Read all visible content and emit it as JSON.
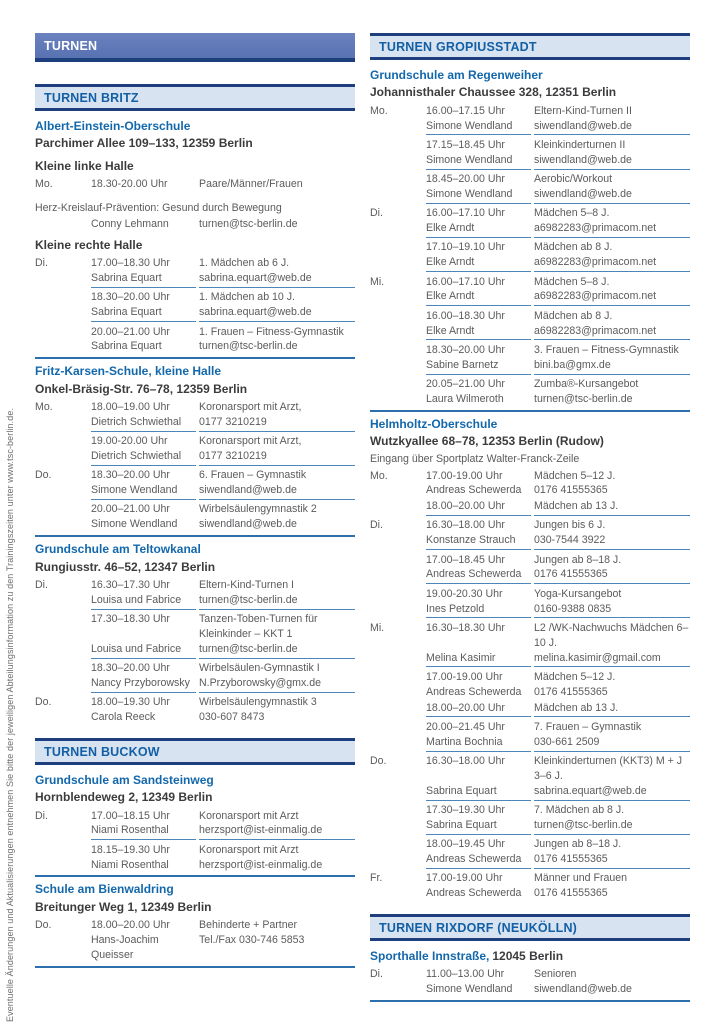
{
  "sidebar_note": "Eventuelle Änderungen und Aktualisierungen entnehmen Sie bitte der jeweiligen Abteilungsinformation zu den Trainingszeiten unter www.tsc-berlin.de.",
  "colors": {
    "main_bar_bg": "#5d77b7",
    "bar_border": "#1d3f7e",
    "section_bar_bg": "#d8e3f1",
    "section_text": "#135fa5",
    "venue_blue": "#1368ac",
    "body_gray": "#5b5b5e",
    "rule_blue": "#4d86bd",
    "separator_blue": "#2d6fad"
  },
  "columns": [
    {
      "blocks": [
        {
          "t": "main",
          "text": "TURNEN"
        },
        {
          "t": "sec",
          "text": "TURNEN BRITZ"
        },
        {
          "t": "venue",
          "text": "Albert-Einstein-Oberschule"
        },
        {
          "t": "addr",
          "text": "Parchimer Allee 109–133, 12359 Berlin"
        },
        {
          "t": "hall",
          "text": "Kleine linke Halle"
        },
        {
          "t": "entry",
          "day": "Mo.",
          "time": "18.30-20.00 Uhr",
          "prog": "Paare/Männer/Frauen",
          "name": "",
          "info": "",
          "rule": false
        },
        {
          "t": "note",
          "gap": true,
          "text": "Herz-Kreislauf-Prävention: Gesund durch Bewegung"
        },
        {
          "t": "entry",
          "day": "",
          "time": "",
          "prog": "",
          "name": "Conny Lehmann",
          "info": "turnen@tsc-berlin.de",
          "rule": false
        },
        {
          "t": "hall",
          "text": "Kleine rechte Halle"
        },
        {
          "t": "entry",
          "day": "Di.",
          "time": "17.00–18.30 Uhr",
          "prog": "1. Mädchen ab 6 J.",
          "name": "Sabrina Equart",
          "info": "sabrina.equart@web.de",
          "rule": true
        },
        {
          "t": "entry",
          "day": "",
          "time": "18.30–20.00 Uhr",
          "prog": "1. Mädchen ab 10 J.",
          "name": "Sabrina Equart",
          "info": "sabrina.equart@web.de",
          "rule": true
        },
        {
          "t": "entry",
          "day": "",
          "time": "20.00–21.00 Uhr",
          "prog": "1. Frauen – Fitness-Gymnastik",
          "name": "Sabrina Equart",
          "info": "turnen@tsc-berlin.de",
          "rule": false
        },
        {
          "t": "sep"
        },
        {
          "t": "venue",
          "text": "Fritz-Karsen-Schule, kleine Halle"
        },
        {
          "t": "addr",
          "text": "Onkel-Bräsig-Str. 76–78, 12359 Berlin"
        },
        {
          "t": "entry",
          "day": "Mo.",
          "time": "18.00–19.00 Uhr",
          "prog": "Koronarsport mit Arzt,",
          "name": "Dietrich Schwiethal",
          "info": "0177 3210219",
          "rule": true
        },
        {
          "t": "entry",
          "day": "",
          "time": "19.00-20.00 Uhr",
          "prog": "Koronarsport mit Arzt,",
          "name": "Dietrich Schwiethal",
          "info": "0177 3210219",
          "rule": true
        },
        {
          "t": "entry",
          "day": "Do.",
          "time": "18.30–20.00 Uhr",
          "prog": "6. Frauen – Gymnastik",
          "name": "Simone Wendland",
          "info": "siwendland@web.de",
          "rule": true
        },
        {
          "t": "entry",
          "day": "",
          "time": "20.00–21.00 Uhr",
          "prog": "Wirbelsäulengymnastik 2",
          "name": "Simone Wendland",
          "info": "siwendland@web.de",
          "rule": false
        },
        {
          "t": "sep"
        },
        {
          "t": "venue",
          "text": "Grundschule am Teltowkanal"
        },
        {
          "t": "addr",
          "text": "Rungiusstr. 46–52, 12347 Berlin"
        },
        {
          "t": "entry",
          "day": "Di.",
          "time": "16.30–17.30 Uhr",
          "prog": "Eltern-Kind-Turnen I",
          "name": "Louisa und Fabrice",
          "info": "turnen@tsc-berlin.de",
          "rule": true
        },
        {
          "t": "entry",
          "day": "",
          "time": "17.30–18.30 Uhr",
          "prog": "Tanzen-Toben-Turnen für Kleinkinder – KKT 1",
          "name": "Louisa und Fabrice",
          "info": "turnen@tsc-berlin.de",
          "rule": true
        },
        {
          "t": "entry",
          "day": "",
          "time": "18.30–20.00 Uhr",
          "prog": "Wirbelsäulen-Gymnastik I",
          "name": "Nancy Przyborowsky",
          "info": "N.Przyborowsky@gmx.de",
          "rule": true
        },
        {
          "t": "entry",
          "day": "Do.",
          "time": "18.00–19.30 Uhr",
          "prog": "Wirbelsäulengymnastik 3",
          "name": "Carola Reeck",
          "info": "030-607 8473",
          "rule": false
        },
        {
          "t": "sec",
          "text": "TURNEN BUCKOW"
        },
        {
          "t": "venue",
          "text": "Grundschule am Sandsteinweg"
        },
        {
          "t": "addr",
          "text": "Hornblendeweg 2, 12349 Berlin"
        },
        {
          "t": "entry",
          "day": "Di.",
          "time": "17.00–18.15 Uhr",
          "prog": "Koronarsport mit Arzt",
          "name": "Niami Rosenthal",
          "info": "herzsport@ist-einmalig.de",
          "rule": true
        },
        {
          "t": "entry",
          "day": "",
          "time": "18.15–19.30 Uhr",
          "prog": "Koronarsport mit Arzt",
          "name": "Niami Rosenthal",
          "info": "herzsport@ist-einmalig.de",
          "rule": false
        },
        {
          "t": "sep"
        },
        {
          "t": "venue",
          "text": "Schule am Bienwaldring"
        },
        {
          "t": "addr",
          "text": "Breitunger Weg 1, 12349 Berlin"
        },
        {
          "t": "entry",
          "day": "Do.",
          "time": "18.00–20.00 Uhr",
          "prog": "Behinderte + Partner",
          "name": "Hans-Joachim Queisser",
          "info": "Tel./Fax 030-746 5853",
          "rule": false
        },
        {
          "t": "sep"
        }
      ]
    },
    {
      "blocks": [
        {
          "t": "sec",
          "text": "TURNEN GROPIUSSTADT"
        },
        {
          "t": "venue",
          "text": "Grundschule am Regenweiher"
        },
        {
          "t": "addr",
          "text": "Johannisthaler Chaussee 328, 12351 Berlin"
        },
        {
          "t": "entry",
          "day": "Mo.",
          "time": "16.00–17.15 Uhr",
          "prog": "Eltern-Kind-Turnen II",
          "name": "Simone Wendland",
          "info": "siwendland@web.de",
          "rule": true
        },
        {
          "t": "entry",
          "day": "",
          "time": "17.15–18.45 Uhr",
          "prog": "Kleinkinderturnen II",
          "name": "Simone Wendland",
          "info": "siwendland@web.de",
          "rule": true
        },
        {
          "t": "entry",
          "day": "",
          "time": "18.45–20.00 Uhr",
          "prog": "Aerobic/Workout",
          "name": "Simone Wendland",
          "info": "siwendland@web.de",
          "rule": true
        },
        {
          "t": "entry",
          "day": "Di.",
          "time": "16.00–17.10 Uhr",
          "prog": "Mädchen 5–8 J.",
          "name": "Elke Arndt",
          "info": "a6982283@primacom.net",
          "rule": true
        },
        {
          "t": "entry",
          "day": "",
          "time": "17.10–19.10 Uhr",
          "prog": "Mädchen ab 8 J.",
          "name": "Elke Arndt",
          "info": "a6982283@primacom.net",
          "rule": true
        },
        {
          "t": "entry",
          "day": "Mi.",
          "time": "16.00–17.10 Uhr",
          "prog": "Mädchen 5–8 J.",
          "name": "Elke Arndt",
          "info": "a6982283@primacom.net",
          "rule": true
        },
        {
          "t": "entry",
          "day": "",
          "time": "16.00–18.30 Uhr",
          "prog": "Mädchen ab 8 J.",
          "name": "Elke Arndt",
          "info": "a6982283@primacom.net",
          "rule": true
        },
        {
          "t": "entry",
          "day": "",
          "time": "18.30–20.00 Uhr",
          "prog": "3. Frauen – Fitness-Gymnastik",
          "name": "Sabine Barnetz",
          "info": "bini.ba@gmx.de",
          "rule": true
        },
        {
          "t": "entry",
          "day": "",
          "time": "20.05–21.00 Uhr",
          "prog": "Zumba®-Kursangebot",
          "name": "Laura Wilmeroth",
          "info": "turnen@tsc-berlin.de",
          "rule": false
        },
        {
          "t": "sep"
        },
        {
          "t": "venue",
          "text": "Helmholtz-Oberschule"
        },
        {
          "t": "addr",
          "text": "Wutzkyallee 68–78, 12353 Berlin (Rudow)"
        },
        {
          "t": "note",
          "gap": false,
          "text": "Eingang über Sportplatz Walter-Franck-Zeile"
        },
        {
          "t": "entry",
          "day": "Mo.",
          "time": "17.00-19.00 Uhr",
          "prog": "Mädchen 5–12 J.",
          "name": "Andreas Schewerda",
          "info": "0176 41555365",
          "rule": false
        },
        {
          "t": "entry",
          "day": "",
          "time": "18.00–20.00 Uhr",
          "prog": "Mädchen ab 13 J.",
          "name": "",
          "info": "",
          "rule": true
        },
        {
          "t": "entry",
          "day": "Di.",
          "time": "16.30–18.00 Uhr",
          "prog": "Jungen bis 6 J.",
          "name": "Konstanze Strauch",
          "info": "030-7544 3922",
          "rule": true
        },
        {
          "t": "entry",
          "day": "",
          "time": "17.00–18.45 Uhr",
          "prog": "Jungen ab 8–18 J.",
          "name": "Andreas Schewerda",
          "info": "0176 41555365",
          "rule": true
        },
        {
          "t": "entry",
          "day": "",
          "time": "19.00-20.30 Uhr",
          "prog": "Yoga-Kursangebot",
          "name": "Ines Petzold",
          "info": "0160-9388 0835",
          "rule": true
        },
        {
          "t": "entry",
          "day": "Mi.",
          "time": "16.30–18.30 Uhr",
          "prog": "L2 /WK-Nachwuchs Mädchen 6–10 J.",
          "name": "Melina Kasimir",
          "info": "melina.kasimir@gmail.com",
          "rule": true
        },
        {
          "t": "entry",
          "day": "",
          "time": "17.00-19.00 Uhr",
          "prog": "Mädchen 5–12 J.",
          "name": "Andreas Schewerda",
          "info": "0176 41555365",
          "rule": false
        },
        {
          "t": "entry",
          "day": "",
          "time": "18.00–20.00 Uhr",
          "prog": "Mädchen ab 13 J.",
          "name": "",
          "info": "",
          "rule": true
        },
        {
          "t": "entry",
          "day": "",
          "time": "20.00–21.45 Uhr",
          "prog": "7. Frauen – Gymnastik",
          "name": "Martina Bochnia",
          "info": "030-661 2509",
          "rule": true
        },
        {
          "t": "entry",
          "day": "Do.",
          "time": "16.30–18.00 Uhr",
          "prog": "Kleinkinderturnen (KKT3) M + J 3–6 J.",
          "name": "Sabrina Equart",
          "info": "sabrina.equart@web.de",
          "rule": true
        },
        {
          "t": "entry",
          "day": "",
          "time": "17.30–19.30 Uhr",
          "prog": "7. Mädchen ab 8 J.",
          "name": "Sabrina Equart",
          "info": "turnen@tsc-berlin.de",
          "rule": true
        },
        {
          "t": "entry",
          "day": "",
          "time": "18.00–19.45 Uhr",
          "prog": "Jungen ab 8–18 J.",
          "name": "Andreas Schewerda",
          "info": "0176 41555365",
          "rule": true
        },
        {
          "t": "entry",
          "day": "Fr.",
          "time": "17.00-19.00 Uhr",
          "prog": "Männer und Frauen",
          "name": "Andreas Schewerda",
          "info": "0176 41555365",
          "rule": false
        },
        {
          "t": "sec",
          "text": "TURNEN RIXDORF (NEUKÖLLN)"
        },
        {
          "t": "venue_inline",
          "name": "Sporthalle Innstraße,",
          "addr": "12045 Berlin"
        },
        {
          "t": "entry",
          "day": "Di.",
          "time": "11.00–13.00 Uhr",
          "prog": "Senioren",
          "name": "Simone Wendland",
          "info": "siwendland@web.de",
          "rule": false
        },
        {
          "t": "sep"
        }
      ]
    }
  ]
}
